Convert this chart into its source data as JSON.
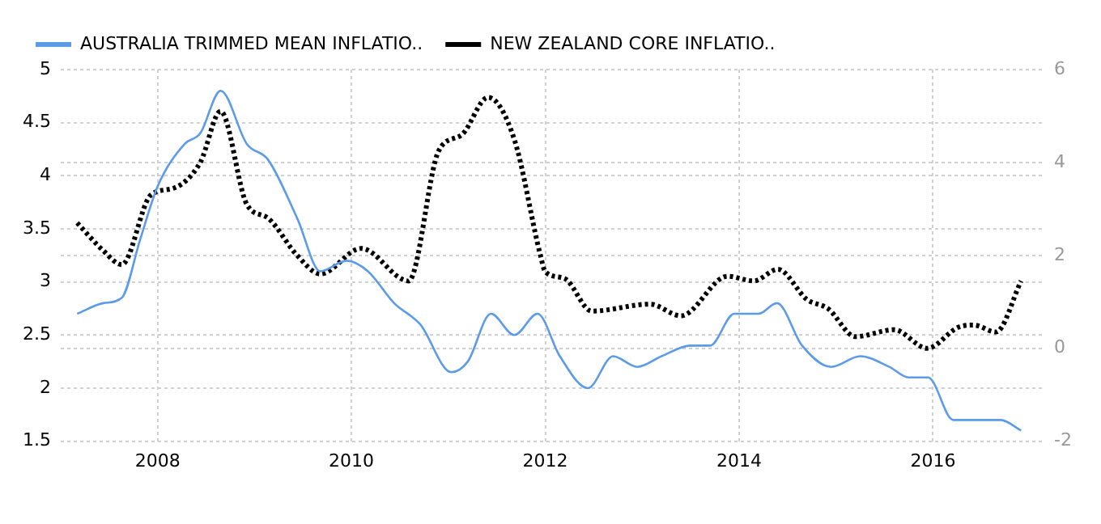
{
  "chart_data": {
    "type": "line",
    "series": [
      {
        "name": "AUSTRALIA TRIMMED MEAN INFLATIO..",
        "color": "#5b9bea",
        "line_style": "solid",
        "axis": "y",
        "x": [
          2007.17,
          2007.44,
          2007.63,
          2007.82,
          2008.0,
          2008.28,
          2008.44,
          2008.65,
          2008.92,
          2009.14,
          2009.44,
          2009.68,
          2009.95,
          2010.17,
          2010.44,
          2010.71,
          2011.03,
          2011.2,
          2011.44,
          2011.68,
          2011.92,
          2012.15,
          2012.44,
          2012.7,
          2012.95,
          2013.2,
          2013.5,
          2013.7,
          2013.95,
          2014.2,
          2014.39,
          2014.65,
          2014.95,
          2015.25,
          2015.55,
          2015.75,
          2015.95,
          2016.21,
          2016.5,
          2016.7,
          2016.91
        ],
        "values": [
          2.7,
          2.8,
          2.85,
          3.4,
          3.9,
          4.3,
          4.4,
          4.8,
          4.3,
          4.15,
          3.6,
          3.1,
          3.2,
          3.1,
          2.8,
          2.6,
          2.15,
          2.25,
          2.7,
          2.5,
          2.7,
          2.3,
          2.0,
          2.3,
          2.2,
          2.3,
          2.4,
          2.4,
          2.7,
          2.7,
          2.8,
          2.4,
          2.2,
          2.3,
          2.2,
          2.1,
          2.1,
          1.7,
          1.7,
          1.7,
          1.6
        ]
      },
      {
        "name": "NEW ZEALAND CORE INFLATIO..",
        "color": "#000000",
        "line_style": "dotted",
        "axis": "y2",
        "x": [
          2007.17,
          2007.44,
          2007.63,
          2007.93,
          2008.17,
          2008.44,
          2008.65,
          2008.92,
          2009.14,
          2009.44,
          2009.68,
          2010.1,
          2010.59,
          2010.9,
          2011.14,
          2011.41,
          2011.68,
          2011.95,
          2012.0,
          2012.2,
          2012.48,
          2013.08,
          2013.4,
          2013.88,
          2014.15,
          2014.4,
          2014.7,
          2014.92,
          2015.2,
          2015.6,
          2015.94,
          2016.26,
          2016.42,
          2016.65,
          2016.91
        ],
        "values": [
          2.7,
          2.1,
          1.8,
          3.3,
          3.45,
          4.0,
          5.1,
          3.1,
          2.8,
          2.0,
          1.6,
          2.15,
          1.45,
          4.25,
          4.6,
          5.4,
          4.5,
          2.0,
          1.65,
          1.5,
          0.8,
          0.95,
          0.7,
          1.55,
          1.45,
          1.7,
          1.05,
          0.85,
          0.25,
          0.4,
          0.0,
          0.45,
          0.5,
          0.35,
          1.45
        ]
      }
    ],
    "xlim": [
      2007,
      2017.15
    ],
    "xticks": [
      2008,
      2010,
      2012,
      2014,
      2016
    ],
    "ylim": [
      1.5,
      5
    ],
    "yticks": [
      1.5,
      2,
      2.5,
      3,
      3.5,
      4,
      4.5,
      5
    ],
    "y2lim": [
      -2,
      6
    ],
    "y2ticks": [
      -2,
      0,
      2,
      4,
      6
    ],
    "grid": true,
    "legend": "top left",
    "marker": "none"
  }
}
